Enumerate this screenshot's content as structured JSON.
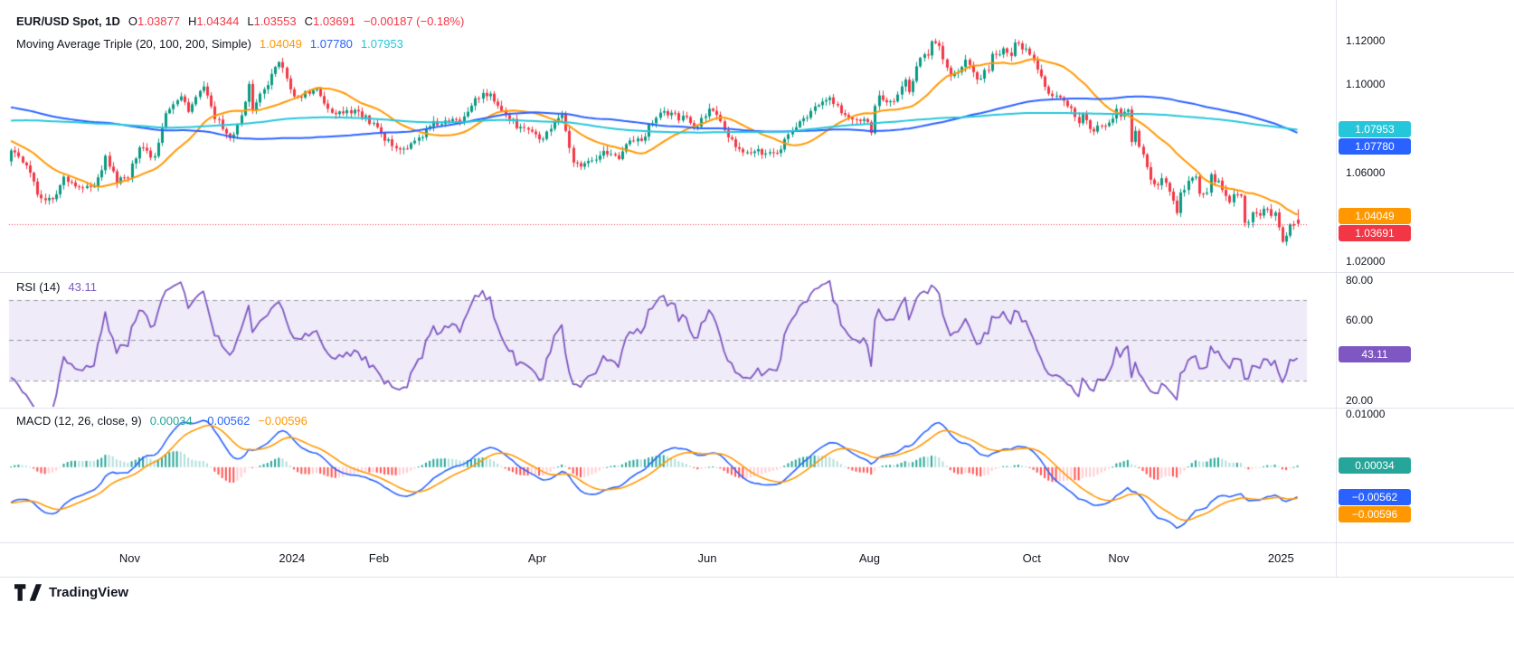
{
  "colors": {
    "up": "#089981",
    "down": "#F23645",
    "ma20": "#FF9800",
    "ma100": "#2962FF",
    "ma200": "#26C6DA",
    "rsi": "#7E57C2",
    "rsi_band_fill": "rgba(126,87,194,0.12)",
    "rsi_band_line": "#9598A1",
    "macd_line": "#2962FF",
    "macd_signal": "#FF9800",
    "hist_up_grow": "#26A69A",
    "hist_up_fall": "#B2DFDB",
    "hist_down_fall": "#FF5252",
    "hist_down_grow": "#FFCDD2",
    "text": "#131722",
    "separator": "#E0E3EB",
    "last_price_line": "#F23645"
  },
  "legend": {
    "title": "EUR/USD Spot, 1D",
    "ohlc": [
      {
        "k": "O",
        "v": "1.03877"
      },
      {
        "k": "H",
        "v": "1.04344"
      },
      {
        "k": "L",
        "v": "1.03553"
      },
      {
        "k": "C",
        "v": "1.03691"
      }
    ],
    "change": "−0.00187 (−0.18%)",
    "ma_title": "Moving Average Triple (20, 100, 200, Simple)",
    "ma_values": [
      "1.04049",
      "1.07780",
      "1.07953"
    ],
    "rsi_title": "RSI (14)",
    "rsi_value": "43.11",
    "macd_title": "MACD (12, 26, close, 9)",
    "macd_values": [
      "0.00034",
      "−0.00562",
      "−0.00596"
    ]
  },
  "price_axis": {
    "main": {
      "ticks": [
        1.12,
        1.1,
        1.06,
        1.02
      ],
      "decimals": 5,
      "badges": [
        {
          "label": "1.07953",
          "value": 1.07953,
          "color": "#26C6DA"
        },
        {
          "label": "1.07780",
          "value": 1.0778,
          "color": "#2962FF"
        },
        {
          "label": "1.04049",
          "value": 1.04049,
          "color": "#FF9800"
        },
        {
          "label": "1.03691",
          "value": 1.03691,
          "color": "#F23645"
        }
      ]
    },
    "rsi": {
      "ticks": [
        80,
        60,
        20
      ],
      "decimals": 2,
      "badges": [
        {
          "label": "43.11",
          "value": 43.11,
          "color": "#7E57C2"
        }
      ]
    },
    "macd": {
      "ticks": [
        0.01
      ],
      "decimals": 5,
      "badges": [
        {
          "label": "0.00034",
          "value": 0.00034,
          "color": "#26A69A"
        },
        {
          "label": "−0.00562",
          "value": -0.00562,
          "color": "#2962FF"
        },
        {
          "label": "−0.00596",
          "value": -0.00596,
          "color": "#FF9800"
        }
      ]
    }
  },
  "x_axis": {
    "labels": [
      {
        "label": "Nov",
        "t": 0.093
      },
      {
        "label": "2024",
        "t": 0.218
      },
      {
        "label": "Feb",
        "t": 0.285
      },
      {
        "label": "Apr",
        "t": 0.407
      },
      {
        "label": "Jun",
        "t": 0.538
      },
      {
        "label": "Aug",
        "t": 0.663
      },
      {
        "label": "Oct",
        "t": 0.788
      },
      {
        "label": "Nov",
        "t": 0.855
      },
      {
        "label": "2025",
        "t": 0.98
      }
    ]
  },
  "attribution": {
    "brand": "TradingView"
  },
  "chart_data": [
    {
      "type": "candlestick",
      "title": "EUR/USD Spot",
      "interval": "1D",
      "last_bar": {
        "open": 1.03877,
        "high": 1.04344,
        "low": 1.03553,
        "close": 1.03691,
        "change": -0.00187,
        "change_pct": -0.18
      },
      "ylim": [
        1.015,
        1.135
      ],
      "y_ticks": [
        1.12,
        1.1,
        1.08,
        1.06,
        1.04,
        1.02
      ],
      "overlays": {
        "type": "sma_triple",
        "periods": [
          20,
          100,
          200
        ],
        "last": [
          1.04049,
          1.0778,
          1.07953
        ]
      },
      "close_anchors": [
        [
          0.0,
          1.0692
        ],
        [
          0.012,
          1.0645
        ],
        [
          0.02,
          1.0504
        ],
        [
          0.032,
          1.047
        ],
        [
          0.041,
          1.0586
        ],
        [
          0.052,
          1.053
        ],
        [
          0.064,
          1.0535
        ],
        [
          0.073,
          1.0669
        ],
        [
          0.081,
          1.0565
        ],
        [
          0.09,
          1.0575
        ],
        [
          0.099,
          1.0731
        ],
        [
          0.11,
          1.0667
        ],
        [
          0.119,
          1.0879
        ],
        [
          0.131,
          1.0941
        ],
        [
          0.137,
          1.0886
        ],
        [
          0.148,
          1.0992
        ],
        [
          0.154,
          1.0888
        ],
        [
          0.166,
          1.0762
        ],
        [
          0.172,
          1.0761
        ],
        [
          0.183,
          1.0992
        ],
        [
          0.186,
          1.0895
        ],
        [
          0.198,
          1.1009
        ],
        [
          0.206,
          1.1105
        ],
        [
          0.212,
          1.1039
        ],
        [
          0.218,
          1.0941
        ],
        [
          0.235,
          1.0973
        ],
        [
          0.247,
          1.0875
        ],
        [
          0.265,
          1.0884
        ],
        [
          0.279,
          1.0818
        ],
        [
          0.288,
          1.0742
        ],
        [
          0.305,
          1.0709
        ],
        [
          0.326,
          1.0822
        ],
        [
          0.346,
          1.0837
        ],
        [
          0.358,
          1.0948
        ],
        [
          0.369,
          1.0948
        ],
        [
          0.381,
          1.0866
        ],
        [
          0.39,
          1.0808
        ],
        [
          0.401,
          1.0789
        ],
        [
          0.407,
          1.0741
        ],
        [
          0.424,
          1.0858
        ],
        [
          0.433,
          1.0644
        ],
        [
          0.439,
          1.0617
        ],
        [
          0.448,
          1.0655
        ],
        [
          0.456,
          1.0697
        ],
        [
          0.468,
          1.0666
        ],
        [
          0.477,
          1.076
        ],
        [
          0.485,
          1.0747
        ],
        [
          0.5,
          1.0884
        ],
        [
          0.512,
          1.0854
        ],
        [
          0.52,
          1.0846
        ],
        [
          0.529,
          1.0801
        ],
        [
          0.538,
          1.0903
        ],
        [
          0.549,
          1.0801
        ],
        [
          0.555,
          1.074
        ],
        [
          0.564,
          1.0703
        ],
        [
          0.578,
          1.0691
        ],
        [
          0.587,
          1.068
        ],
        [
          0.596,
          1.074
        ],
        [
          0.608,
          1.0838
        ],
        [
          0.622,
          1.0907
        ],
        [
          0.631,
          1.0938
        ],
        [
          0.642,
          1.0853
        ],
        [
          0.66,
          1.0826
        ],
        [
          0.663,
          1.0791
        ],
        [
          0.666,
          1.0911
        ],
        [
          0.669,
          1.0952
        ],
        [
          0.68,
          1.0916
        ],
        [
          0.689,
          1.1012
        ],
        [
          0.692,
          1.0971
        ],
        [
          0.698,
          1.1085
        ],
        [
          0.703,
          1.115
        ],
        [
          0.706,
          1.1112
        ],
        [
          0.709,
          1.1192
        ],
        [
          0.715,
          1.1184
        ],
        [
          0.718,
          1.112
        ],
        [
          0.724,
          1.1048
        ],
        [
          0.73,
          1.1044
        ],
        [
          0.735,
          1.1111
        ],
        [
          0.744,
          1.102
        ],
        [
          0.753,
          1.1076
        ],
        [
          0.756,
          1.1133
        ],
        [
          0.767,
          1.1163
        ],
        [
          0.77,
          1.111
        ],
        [
          0.773,
          1.1181
        ],
        [
          0.782,
          1.1163
        ],
        [
          0.785,
          1.1134
        ],
        [
          0.794,
          1.1033
        ],
        [
          0.797,
          1.0975
        ],
        [
          0.805,
          1.094
        ],
        [
          0.814,
          1.091
        ],
        [
          0.823,
          1.083
        ],
        [
          0.826,
          1.0866
        ],
        [
          0.834,
          1.0782
        ],
        [
          0.837,
          1.0827
        ],
        [
          0.846,
          1.0818
        ],
        [
          0.852,
          1.0883
        ],
        [
          0.855,
          1.0834
        ],
        [
          0.86,
          1.093
        ],
        [
          0.863,
          1.0729
        ],
        [
          0.866,
          1.0803
        ],
        [
          0.869,
          1.0718
        ],
        [
          0.875,
          1.0623
        ],
        [
          0.881,
          1.0531
        ],
        [
          0.884,
          1.054
        ],
        [
          0.887,
          1.0597
        ],
        [
          0.895,
          1.0474
        ],
        [
          0.898,
          1.0417
        ],
        [
          0.901,
          1.0495
        ],
        [
          0.907,
          1.0566
        ],
        [
          0.913,
          1.0577
        ],
        [
          0.916,
          1.0498
        ],
        [
          0.922,
          1.0511
        ],
        [
          0.924,
          1.0587
        ],
        [
          0.93,
          1.0555
        ],
        [
          0.936,
          1.0496
        ],
        [
          0.939,
          1.0467
        ],
        [
          0.942,
          1.0501
        ],
        [
          0.948,
          1.0493
        ],
        [
          0.951,
          1.0353
        ],
        [
          0.953,
          1.0362
        ],
        [
          0.956,
          1.043
        ],
        [
          0.959,
          1.0405
        ],
        [
          0.965,
          1.0422
        ],
        [
          0.968,
          1.0427
        ],
        [
          0.974,
          1.0407
        ],
        [
          0.977,
          1.0354
        ],
        [
          0.98,
          1.0267
        ],
        [
          0.983,
          1.0308
        ],
        [
          0.986,
          1.0391
        ],
        [
          0.988,
          1.0369
        ]
      ],
      "pre_anchors": [
        [
          -0.64,
          1.035
        ],
        [
          -0.596,
          1.052
        ],
        [
          -0.538,
          1.07
        ],
        [
          -0.5,
          1.079
        ],
        [
          -0.471,
          1.099
        ],
        [
          -0.419,
          1.061
        ],
        [
          -0.384,
          1.058
        ],
        [
          -0.349,
          1.084
        ],
        [
          -0.32,
          1.099
        ],
        [
          -0.291,
          1.102
        ],
        [
          -0.259,
          1.0875
        ],
        [
          -0.224,
          1.069
        ],
        [
          -0.192,
          1.0945
        ],
        [
          -0.16,
          1.091
        ],
        [
          -0.131,
          1.1225
        ],
        [
          -0.105,
          1.098
        ],
        [
          -0.076,
          1.098
        ],
        [
          -0.044,
          1.0795
        ],
        [
          -0.023,
          1.072
        ],
        [
          -0.003,
          1.0658
        ]
      ]
    },
    {
      "type": "line",
      "name": "RSI",
      "period": 14,
      "last": 43.11,
      "ylim": [
        16.8,
        83.6
      ],
      "y_ticks": [
        80,
        60,
        40,
        20
      ],
      "levels": [
        70,
        50,
        30
      ]
    },
    {
      "type": "macd",
      "fast": 12,
      "slow": 26,
      "source": "close",
      "signal": 9,
      "last": {
        "histogram": 0.00034,
        "macd": -0.00562,
        "signal": -0.00596
      },
      "ylim": [
        -0.0141,
        0.011
      ],
      "y_ticks": [
        0.01,
        0
      ]
    }
  ]
}
